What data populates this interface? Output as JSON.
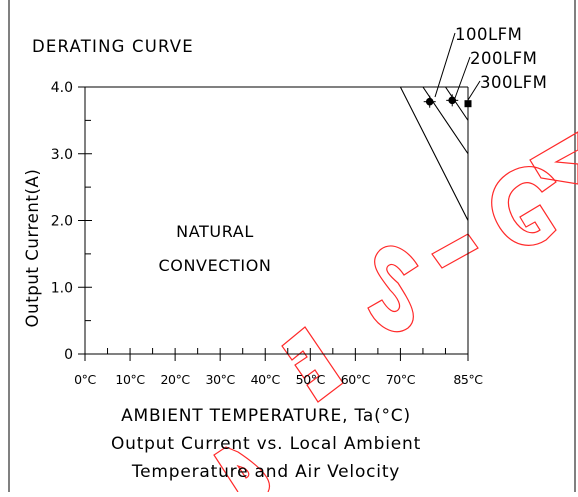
{
  "chart_data": {
    "type": "line",
    "title": "DERATING CURVE",
    "xlabel": "AMBIENT TEMPERATURE, Ta(°C)",
    "ylabel": "Output Current(A)",
    "caption": [
      "Output Current vs. Local Ambient",
      "Temperature and Air Velocity"
    ],
    "xlim": [
      0,
      85
    ],
    "ylim": [
      0,
      4.0
    ],
    "x_ticks": [
      {
        "value": 0,
        "label": "0°C"
      },
      {
        "value": 10,
        "label": "10°C"
      },
      {
        "value": 20,
        "label": "20°C"
      },
      {
        "value": 30,
        "label": "30°C"
      },
      {
        "value": 40,
        "label": "40°C"
      },
      {
        "value": 50,
        "label": "50°C"
      },
      {
        "value": 60,
        "label": "60°C"
      },
      {
        "value": 70,
        "label": "70°C"
      },
      {
        "value": 85,
        "label": "85°C"
      }
    ],
    "x_minor_ticks": [
      5,
      15,
      25,
      35,
      45,
      55,
      65,
      75,
      80
    ],
    "y_ticks": [
      {
        "value": 0,
        "label": "0"
      },
      {
        "value": 1.0,
        "label": "1.0"
      },
      {
        "value": 2.0,
        "label": "2.0"
      },
      {
        "value": 3.0,
        "label": "3.0"
      },
      {
        "value": 4.0,
        "label": "4.0"
      }
    ],
    "y_minor_ticks": [
      0.5,
      1.5,
      2.5,
      3.5
    ],
    "region_label": [
      "NATURAL",
      "CONVECTION"
    ],
    "series": [
      {
        "name": "NATURAL CONVECTION",
        "x": [
          0,
          70,
          85
        ],
        "y": [
          4.0,
          4.0,
          2.0
        ]
      },
      {
        "name": "100LFM",
        "x": [
          0,
          75,
          85
        ],
        "y": [
          4.0,
          4.0,
          3.0
        ]
      },
      {
        "name": "200LFM",
        "x": [
          0,
          80,
          85
        ],
        "y": [
          4.0,
          4.0,
          3.5
        ]
      },
      {
        "name": "300LFM",
        "x": [
          0,
          85
        ],
        "y": [
          4.0,
          4.0
        ]
      }
    ],
    "markers": [
      {
        "series": "100LFM",
        "x": 76.5,
        "y": 3.78
      },
      {
        "series": "200LFM",
        "x": 81.5,
        "y": 3.8
      },
      {
        "series": "300LFM",
        "x": 85,
        "y": 3.75
      }
    ],
    "grid": false,
    "watermark": "DESIGN"
  }
}
